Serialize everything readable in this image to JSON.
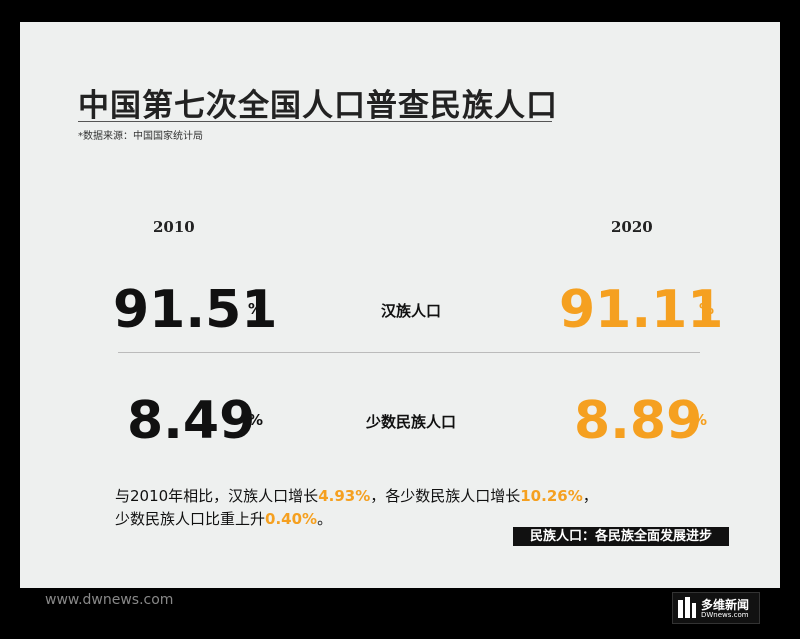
{
  "header": {
    "title": "中国第七次全国人口普查民族人口",
    "source": "*数据来源：中国国家统计局"
  },
  "years": [
    "2010",
    "2020"
  ],
  "rows": [
    {
      "label": "汉族人口",
      "values": [
        "91.51",
        "91.11"
      ],
      "unit": "%"
    },
    {
      "label": "少数民族人口",
      "values": [
        "8.49",
        "8.89"
      ],
      "unit": "%"
    }
  ],
  "summary": [
    [
      {
        "text": "与2010年相比，汉族人口增长",
        "highlight": false
      },
      {
        "text": "4.93%",
        "highlight": true
      },
      {
        "text": "，各少数民族人口增长",
        "highlight": false
      },
      {
        "text": "10.26%",
        "highlight": true
      },
      {
        "text": "，",
        "highlight": false
      }
    ],
    [
      {
        "text": "少数民族人口比重上升",
        "highlight": false
      },
      {
        "text": "0.40%",
        "highlight": true
      },
      {
        "text": "。",
        "highlight": false
      }
    ]
  ],
  "tag": "民族人口：各民族全面发展进步",
  "footer": {
    "site": "www.dwnews.com",
    "logo": "多维新闻",
    "logo_sub": "DWnews.com"
  }
}
